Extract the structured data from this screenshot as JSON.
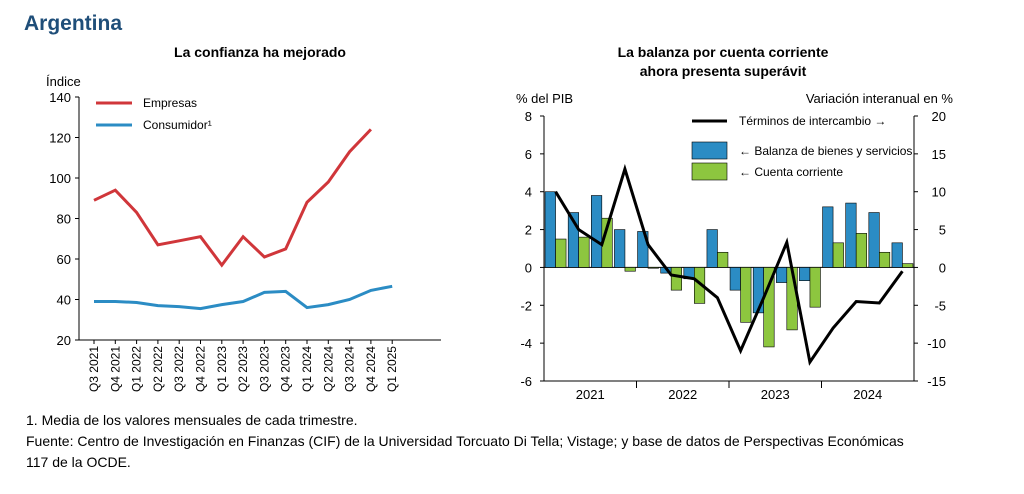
{
  "country": "Argentina",
  "footnotes": {
    "note1": "1. Media de los valores mensuales de cada trimestre.",
    "source_line1": "Fuente: Centro de Investigación en Finanzas (CIF) de la Universidad Torcuato Di Tella; Vistage; y base de datos de Perspectivas Económicas",
    "source_line2": "117 de la OCDE."
  },
  "chart_data": [
    {
      "type": "line",
      "title": "La confianza ha mejorado",
      "ylabel": "Índice",
      "ylim": [
        20,
        140
      ],
      "yticks": [
        20,
        40,
        60,
        80,
        100,
        120,
        140
      ],
      "legend_position": "top-left",
      "categories": [
        "Q3 2021",
        "Q4 2021",
        "Q1 2022",
        "Q2 2022",
        "Q3 2022",
        "Q4 2022",
        "Q1 2023",
        "Q2 2023",
        "Q3 2023",
        "Q4 2023",
        "Q1 2024",
        "Q2 2024",
        "Q3 2024",
        "Q4 2024",
        "Q1 2025"
      ],
      "series": [
        {
          "name": "Empresas",
          "color": "#d0363a",
          "values": [
            89,
            94,
            83,
            67,
            69,
            71,
            57,
            71,
            61,
            65,
            88,
            98,
            113,
            124,
            null
          ]
        },
        {
          "name": "Consumidor¹",
          "color": "#2b8cc4",
          "values": [
            39,
            39,
            38.5,
            37,
            36.5,
            35.5,
            37.5,
            39,
            43.5,
            44,
            36,
            37.5,
            40,
            44.5,
            46.5
          ]
        }
      ]
    },
    {
      "type": "bar+line",
      "title_line1": "La balanza por cuenta corriente",
      "title_line2": "ahora presenta superávit",
      "ylabel_left": "% del PIB",
      "ylabel_right": "Variación interanual en %",
      "ylim_left": [
        -6,
        8
      ],
      "yticks_left": [
        -6,
        -4,
        -2,
        0,
        2,
        4,
        6,
        8
      ],
      "ylim_right": [
        -15,
        20
      ],
      "yticks_right": [
        -15,
        -10,
        -5,
        0,
        5,
        10,
        15,
        20
      ],
      "year_labels": [
        "2021",
        "2022",
        "2023",
        "2024"
      ],
      "quarters": [
        "2021Q1",
        "2021Q2",
        "2021Q3",
        "2021Q4",
        "2022Q1",
        "2022Q2",
        "2022Q3",
        "2022Q4",
        "2023Q1",
        "2023Q2",
        "2023Q3",
        "2023Q4",
        "2024Q1",
        "2024Q2",
        "2024Q3",
        "2024Q4"
      ],
      "series": [
        {
          "name": "← Balanza de bienes y servicios",
          "kind": "bar",
          "axis": "left",
          "color": "#2b8cc4",
          "values": [
            4.0,
            2.9,
            3.8,
            2.0,
            1.9,
            -0.3,
            -0.6,
            2.0,
            -1.2,
            -2.4,
            -0.8,
            -0.7,
            3.2,
            3.4,
            2.9,
            1.3
          ]
        },
        {
          "name": "← Cuenta corriente",
          "kind": "bar",
          "axis": "left",
          "color": "#8dc63f",
          "values": [
            1.5,
            1.6,
            2.6,
            -0.2,
            0.0,
            -1.2,
            -1.9,
            0.8,
            -2.9,
            -4.2,
            -3.3,
            -2.1,
            1.3,
            1.8,
            0.8,
            0.2
          ]
        },
        {
          "name": "Términos de intercambio →",
          "kind": "line",
          "axis": "right",
          "color": "#000000",
          "values": [
            10,
            5,
            3,
            13,
            3,
            -1,
            -1.5,
            -4,
            -11,
            -4,
            3.3,
            -12.5,
            -8,
            -4.5,
            -4.7,
            -0.5
          ]
        }
      ]
    }
  ]
}
